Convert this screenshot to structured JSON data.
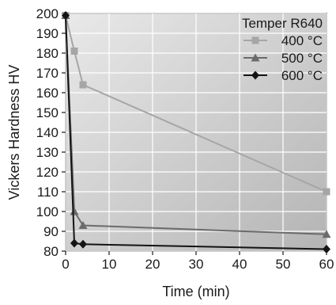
{
  "chart_data": {
    "type": "line",
    "xlabel": "Time (min)",
    "ylabel": "Vickers Hardness HV",
    "xlim": [
      0,
      60
    ],
    "ylim": [
      80,
      200
    ],
    "x_ticks": [
      "0",
      "10",
      "20",
      "30",
      "40",
      "50",
      "60"
    ],
    "y_ticks": [
      "80",
      "90",
      "100",
      "110",
      "120",
      "130",
      "140",
      "150",
      "160",
      "170",
      "180",
      "190",
      "200"
    ],
    "grid": true,
    "legend_position": "top-right",
    "legend_title": "Temper R640",
    "series": [
      {
        "name": "400 °C",
        "color": "#a6a6a6",
        "marker": "square",
        "x": [
          0,
          2,
          4,
          60
        ],
        "y": [
          199,
          181,
          164,
          110
        ]
      },
      {
        "name": "500 °C",
        "color": "#6b6b6b",
        "marker": "triangle",
        "x": [
          0,
          2,
          4,
          60
        ],
        "y": [
          199,
          100,
          93,
          88.5
        ]
      },
      {
        "name": "600 °C",
        "color": "#141414",
        "marker": "diamond",
        "x": [
          0,
          2,
          4,
          60
        ],
        "y": [
          199,
          84,
          83.5,
          81
        ]
      }
    ]
  }
}
